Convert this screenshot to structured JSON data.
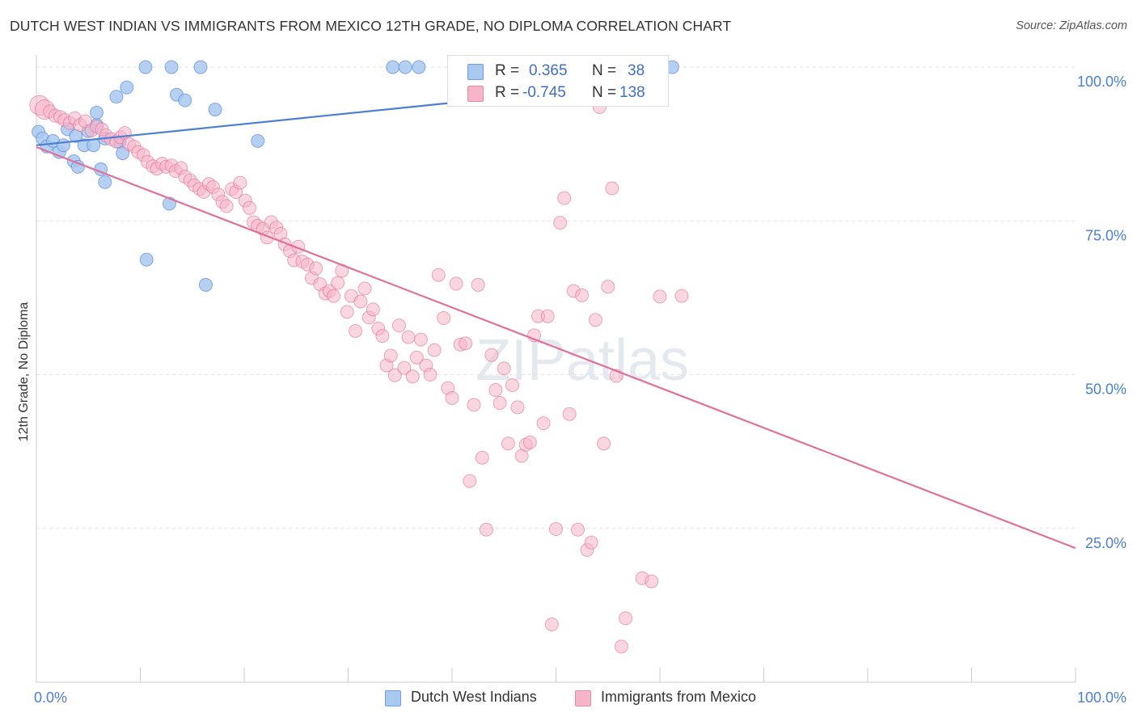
{
  "title": "DUTCH WEST INDIAN VS IMMIGRANTS FROM MEXICO 12TH GRADE, NO DIPLOMA CORRELATION CHART",
  "source": "Source: ZipAtlas.com",
  "watermark": "ZIPatlas",
  "legend": {
    "rows": [
      {
        "r_label": "R =",
        "r_value": "0.365",
        "n_label": "N =",
        "n_value": "38",
        "color": "#a9c8f0"
      },
      {
        "r_label": "R =",
        "r_value": "-0.745",
        "n_label": "N =",
        "n_value": "138",
        "color": "#f6b5c8"
      }
    ]
  },
  "bottom_legend": [
    {
      "label": "Dutch West Indians",
      "color": "#a9c8f0"
    },
    {
      "label": "Immigrants from Mexico",
      "color": "#f6b5c8"
    }
  ],
  "chart_data": {
    "type": "scatter",
    "title": "DUTCH WEST INDIAN VS IMMIGRANTS FROM MEXICO 12TH GRADE, NO DIPLOMA CORRELATION CHART",
    "xlabel": "",
    "ylabel": "12th Grade, No Diploma",
    "xlim": [
      0,
      100
    ],
    "ylim": [
      0,
      100
    ],
    "x_tick_labels": [
      "0.0%",
      "100.0%"
    ],
    "y_tick_labels": [
      "100.0%",
      "75.0%",
      "50.0%",
      "25.0%"
    ],
    "y_ticks": [
      100,
      75,
      50,
      25
    ],
    "grid": true,
    "legend_position": "top-center",
    "series": [
      {
        "name": "Dutch West Indians",
        "color": "#4a7fd4",
        "fill": "#a9c8f0",
        "trend": [
          [
            0,
            87.3
          ],
          [
            55,
            96.8
          ]
        ],
        "points": [
          [
            0.2,
            89.5
          ],
          [
            0.6,
            88.4
          ],
          [
            1.0,
            87.1
          ],
          [
            1.6,
            88.0
          ],
          [
            2.2,
            86.2
          ],
          [
            2.6,
            87.3
          ],
          [
            3.0,
            89.9
          ],
          [
            3.6,
            84.7
          ],
          [
            3.8,
            88.8
          ],
          [
            4.0,
            83.8
          ],
          [
            4.6,
            87.3
          ],
          [
            5.0,
            89.6
          ],
          [
            5.5,
            87.3
          ],
          [
            5.8,
            90.6
          ],
          [
            5.8,
            92.6
          ],
          [
            6.2,
            83.4
          ],
          [
            6.6,
            88.4
          ],
          [
            6.6,
            81.3
          ],
          [
            7.7,
            95.2
          ],
          [
            8.0,
            87.8
          ],
          [
            8.3,
            86.0
          ],
          [
            8.7,
            96.7
          ],
          [
            10.5,
            100
          ],
          [
            10.6,
            68.7
          ],
          [
            12.8,
            77.8
          ],
          [
            13.0,
            100
          ],
          [
            13.5,
            95.5
          ],
          [
            14.3,
            94.6
          ],
          [
            15.8,
            100
          ],
          [
            16.3,
            64.6
          ],
          [
            17.2,
            93.1
          ],
          [
            21.3,
            88.0
          ],
          [
            34.3,
            100
          ],
          [
            35.5,
            100
          ],
          [
            36.8,
            100
          ],
          [
            43.4,
            100
          ],
          [
            52.3,
            100
          ],
          [
            61.2,
            100
          ]
        ]
      },
      {
        "name": "Immigrants from Mexico",
        "color": "#e0709a",
        "fill": "#f6b5c8",
        "trend": [
          [
            0,
            87.0
          ],
          [
            100,
            21.8
          ]
        ],
        "points": [
          [
            0.3,
            93.8
          ],
          [
            0.8,
            93.1
          ],
          [
            1.3,
            92.8
          ],
          [
            1.8,
            92.1
          ],
          [
            2.3,
            91.9
          ],
          [
            2.7,
            91.4
          ],
          [
            3.2,
            90.9
          ],
          [
            3.7,
            91.7
          ],
          [
            4.2,
            90.6
          ],
          [
            4.7,
            91.2
          ],
          [
            5.3,
            89.7
          ],
          [
            5.8,
            90.3
          ],
          [
            6.3,
            89.9
          ],
          [
            6.7,
            88.9
          ],
          [
            7.2,
            88.3
          ],
          [
            7.7,
            87.9
          ],
          [
            8.1,
            88.6
          ],
          [
            8.5,
            89.3
          ],
          [
            8.9,
            87.5
          ],
          [
            9.4,
            87.1
          ],
          [
            9.8,
            86.2
          ],
          [
            10.3,
            85.7
          ],
          [
            10.7,
            84.6
          ],
          [
            11.2,
            83.9
          ],
          [
            11.6,
            83.5
          ],
          [
            12.1,
            84.3
          ],
          [
            12.5,
            83.8
          ],
          [
            13.0,
            84.0
          ],
          [
            13.4,
            83.1
          ],
          [
            13.9,
            83.6
          ],
          [
            14.3,
            82.2
          ],
          [
            14.8,
            81.6
          ],
          [
            15.2,
            80.8
          ],
          [
            15.7,
            80.2
          ],
          [
            16.1,
            79.7
          ],
          [
            16.6,
            81.0
          ],
          [
            17.0,
            80.5
          ],
          [
            17.5,
            79.3
          ],
          [
            17.9,
            78.1
          ],
          [
            18.3,
            77.4
          ],
          [
            18.8,
            80.2
          ],
          [
            19.2,
            79.7
          ],
          [
            19.6,
            81.2
          ],
          [
            20.1,
            78.3
          ],
          [
            20.5,
            77.1
          ],
          [
            20.9,
            74.8
          ],
          [
            21.3,
            74.2
          ],
          [
            21.8,
            73.7
          ],
          [
            22.2,
            72.3
          ],
          [
            22.6,
            74.8
          ],
          [
            23.1,
            73.9
          ],
          [
            23.5,
            72.9
          ],
          [
            23.9,
            71.2
          ],
          [
            24.4,
            70.1
          ],
          [
            24.8,
            68.6
          ],
          [
            25.2,
            70.8
          ],
          [
            25.6,
            68.4
          ],
          [
            26.1,
            67.9
          ],
          [
            26.5,
            65.7
          ],
          [
            26.9,
            67.3
          ],
          [
            27.3,
            64.7
          ],
          [
            27.8,
            63.2
          ],
          [
            28.2,
            63.6
          ],
          [
            28.6,
            62.8
          ],
          [
            29.0,
            64.9
          ],
          [
            29.4,
            66.9
          ],
          [
            29.9,
            60.2
          ],
          [
            30.3,
            62.8
          ],
          [
            30.7,
            57.1
          ],
          [
            31.2,
            61.9
          ],
          [
            31.6,
            64.0
          ],
          [
            32.0,
            59.3
          ],
          [
            32.4,
            60.6
          ],
          [
            32.9,
            57.5
          ],
          [
            33.3,
            56.3
          ],
          [
            33.7,
            51.5
          ],
          [
            34.1,
            53.1
          ],
          [
            34.5,
            49.9
          ],
          [
            34.9,
            58.0
          ],
          [
            35.4,
            51.1
          ],
          [
            35.8,
            56.1
          ],
          [
            36.2,
            49.7
          ],
          [
            36.6,
            52.8
          ],
          [
            37.0,
            55.7
          ],
          [
            37.5,
            51.5
          ],
          [
            37.9,
            50.0
          ],
          [
            38.3,
            54.0
          ],
          [
            38.7,
            66.2
          ],
          [
            39.2,
            59.2
          ],
          [
            39.6,
            47.8
          ],
          [
            40.0,
            46.2
          ],
          [
            40.4,
            64.8
          ],
          [
            40.8,
            54.9
          ],
          [
            41.3,
            55.1
          ],
          [
            41.7,
            32.7
          ],
          [
            42.1,
            45.1
          ],
          [
            42.5,
            64.6
          ],
          [
            42.9,
            36.5
          ],
          [
            43.3,
            24.8
          ],
          [
            43.8,
            53.2
          ],
          [
            44.2,
            47.5
          ],
          [
            44.6,
            45.4
          ],
          [
            45.0,
            51.0
          ],
          [
            45.4,
            38.8
          ],
          [
            45.8,
            48.3
          ],
          [
            46.3,
            44.7
          ],
          [
            46.7,
            36.8
          ],
          [
            47.1,
            38.6
          ],
          [
            47.5,
            39.0
          ],
          [
            47.9,
            56.4
          ],
          [
            48.3,
            59.5
          ],
          [
            48.8,
            42.1
          ],
          [
            49.2,
            59.5
          ],
          [
            49.6,
            9.4
          ],
          [
            50.0,
            24.9
          ],
          [
            50.4,
            74.7
          ],
          [
            50.8,
            78.7
          ],
          [
            51.3,
            43.6
          ],
          [
            51.7,
            63.6
          ],
          [
            52.1,
            24.8
          ],
          [
            52.5,
            62.9
          ],
          [
            53.0,
            21.5
          ],
          [
            53.4,
            22.7
          ],
          [
            53.8,
            58.9
          ],
          [
            54.2,
            93.5
          ],
          [
            54.6,
            38.8
          ],
          [
            55.0,
            64.3
          ],
          [
            55.4,
            80.3
          ],
          [
            55.8,
            49.8
          ],
          [
            56.3,
            5.8
          ],
          [
            56.7,
            10.4
          ],
          [
            58.3,
            16.9
          ],
          [
            59.2,
            16.4
          ],
          [
            60.0,
            62.7
          ],
          [
            62.1,
            62.8
          ],
          [
            51.0,
            100
          ]
        ]
      }
    ]
  }
}
